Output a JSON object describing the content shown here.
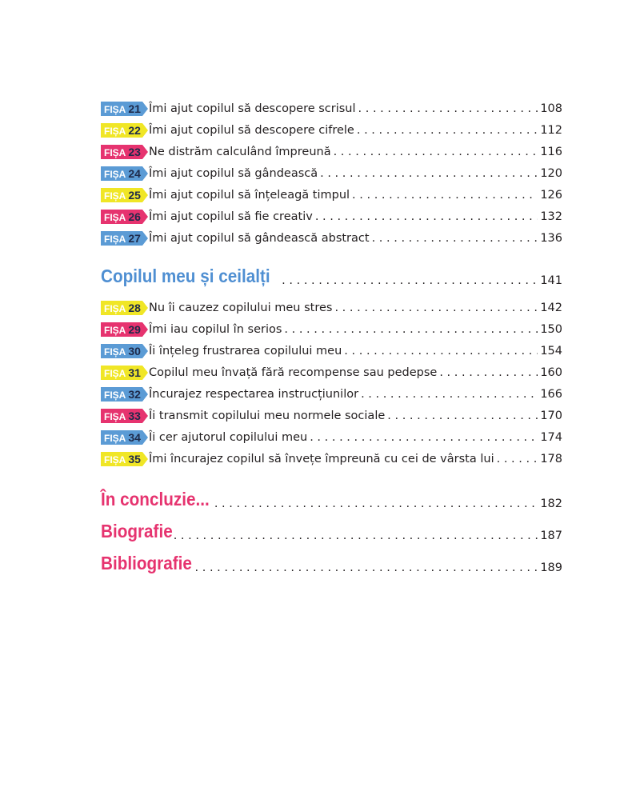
{
  "colors": {
    "blue": "#5b9bd5",
    "yellow": "#f0e626",
    "pink": "#e6336f"
  },
  "tag_prefix": "FIȘA",
  "group1": [
    {
      "num": "21",
      "color": "blue",
      "title": "Îmi ajut copilul să descopere scrisul",
      "page": "108"
    },
    {
      "num": "22",
      "color": "yellow",
      "title": "Îmi ajut copilul să descopere cifrele",
      "page": "112"
    },
    {
      "num": "23",
      "color": "pink",
      "title": "Ne distrăm calculând împreună",
      "page": "116"
    },
    {
      "num": "24",
      "color": "blue",
      "title": "Îmi ajut copilul să gândească",
      "page": "120"
    },
    {
      "num": "25",
      "color": "yellow",
      "title": "Îmi ajut copilul să înțeleagă timpul",
      "page": "126"
    },
    {
      "num": "26",
      "color": "pink",
      "title": "Îmi ajut copilul să fie creativ",
      "page": "132"
    },
    {
      "num": "27",
      "color": "blue",
      "title": "Îmi ajut copilul să gândească abstract",
      "page": "136"
    }
  ],
  "section": {
    "title": "Copilul meu și ceilalți",
    "page": "141"
  },
  "group2": [
    {
      "num": "28",
      "color": "yellow",
      "title": "Nu îi cauzez copilului meu stres",
      "page": "142"
    },
    {
      "num": "29",
      "color": "pink",
      "title": "Îmi iau copilul în serios",
      "page": "150"
    },
    {
      "num": "30",
      "color": "blue",
      "title": "Îi înțeleg frustrarea copilului meu",
      "page": "154"
    },
    {
      "num": "31",
      "color": "yellow",
      "title": "Copilul meu învață fără recompense sau pedepse",
      "page": "160"
    },
    {
      "num": "32",
      "color": "blue",
      "title": "Încurajez respectarea instrucțiunilor",
      "page": "166"
    },
    {
      "num": "33",
      "color": "pink",
      "title": "Îi transmit copilului meu normele sociale",
      "page": "170"
    },
    {
      "num": "34",
      "color": "blue",
      "title": "Îi cer ajutorul copilului meu",
      "page": "174"
    },
    {
      "num": "35",
      "color": "yellow",
      "title": "Îmi încurajez copilul să învețe împreună cu cei de vârsta lui",
      "page": "178"
    }
  ],
  "endings": [
    {
      "title": "În concluzie...",
      "page": "182"
    },
    {
      "title": "Biografie",
      "page": "187"
    },
    {
      "title": "Bibliografie",
      "page": "189"
    }
  ]
}
